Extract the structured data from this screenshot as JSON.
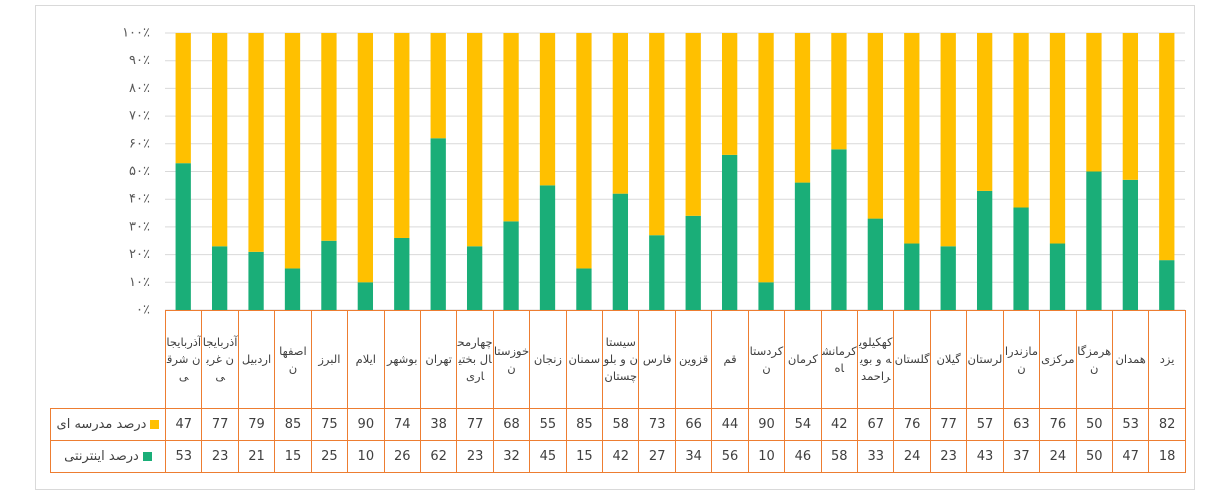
{
  "chart_data": {
    "type": "stacked_bar",
    "categories": [
      "آذربایجان شرقی",
      "آذربایجان غربی",
      "اردبیل",
      "اصفهان",
      "البرز",
      "ایلام",
      "بوشهر",
      "تهران",
      "چهارمحال بختیاری",
      "خوزستان",
      "زنجان",
      "سمنان",
      "سیستان و بلوچستان",
      "فارس",
      "قزوین",
      "قم",
      "کردستان",
      "کرمان",
      "کرمانشاه",
      "کهکیلویه و بویراحمد",
      "گلستان",
      "گیلان",
      "لرستان",
      "مازندران",
      "مرکزی",
      "هرمزگان",
      "همدان",
      "یزد"
    ],
    "series": [
      {
        "name": "درصد اینترنتی",
        "color": "#1aae78",
        "values": [
          53,
          23,
          21,
          15,
          25,
          10,
          26,
          62,
          23,
          32,
          45,
          15,
          42,
          27,
          34,
          56,
          10,
          46,
          58,
          33,
          24,
          23,
          43,
          37,
          24,
          50,
          47,
          18
        ]
      },
      {
        "name": "درصد مدرسه ای",
        "color": "#ffc000",
        "values": [
          47,
          77,
          79,
          85,
          75,
          90,
          74,
          38,
          77,
          68,
          55,
          85,
          58,
          73,
          66,
          44,
          90,
          54,
          42,
          67,
          76,
          77,
          57,
          63,
          76,
          50,
          53,
          82
        ]
      }
    ],
    "ylim": [
      0,
      100
    ],
    "yticks": [
      {
        "value": 0,
        "label": "۰٪"
      },
      {
        "value": 10,
        "label": "۱۰٪"
      },
      {
        "value": 20,
        "label": "۲۰٪"
      },
      {
        "value": 30,
        "label": "۳۰٪"
      },
      {
        "value": 40,
        "label": "۴۰٪"
      },
      {
        "value": 50,
        "label": "۵۰٪"
      },
      {
        "value": 60,
        "label": "۶۰٪"
      },
      {
        "value": 70,
        "label": "۷۰٪"
      },
      {
        "value": 80,
        "label": "۸۰٪"
      },
      {
        "value": 90,
        "label": "۹۰٪"
      },
      {
        "value": 100,
        "label": "۱۰۰٪"
      }
    ],
    "grid": true
  }
}
